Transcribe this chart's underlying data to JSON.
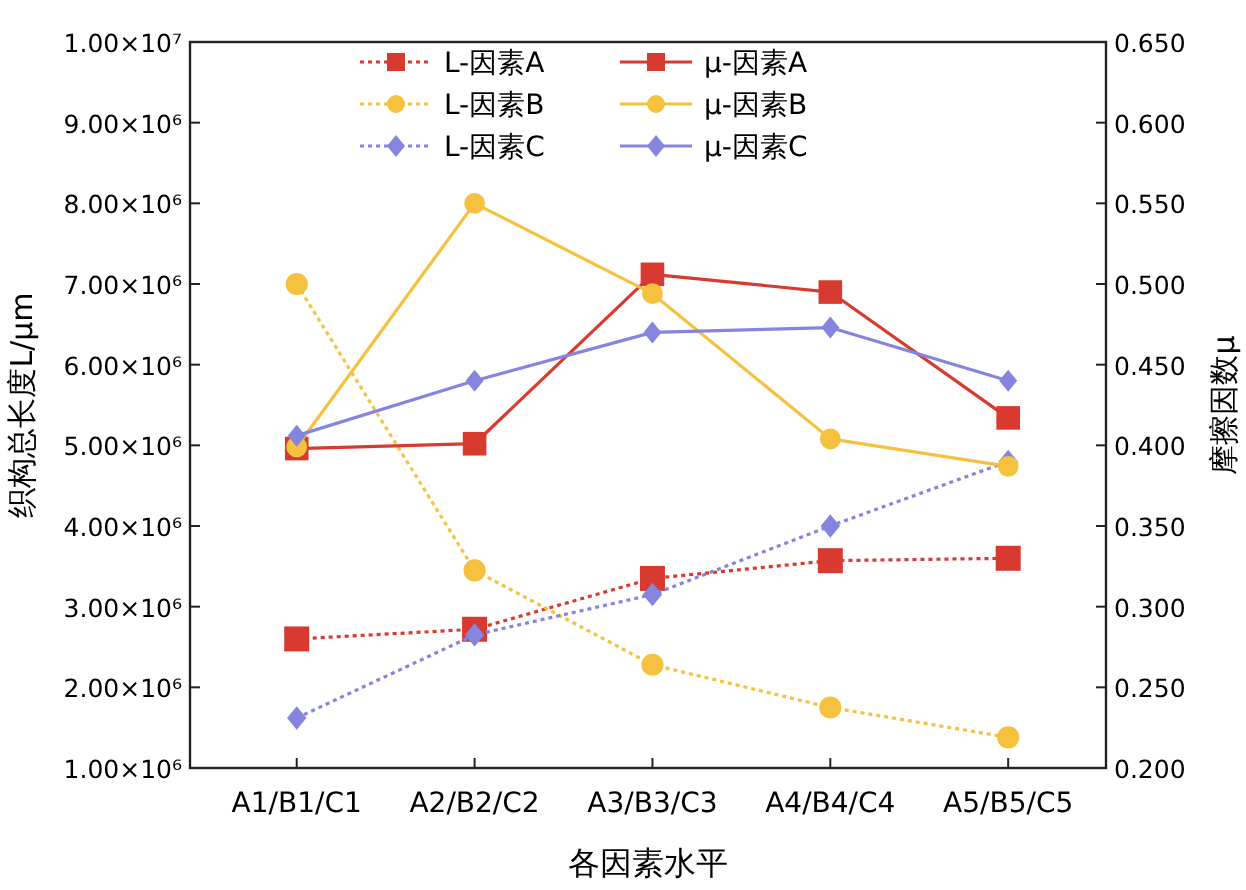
{
  "chart_data": {
    "type": "line",
    "xlabel": "各因素水平",
    "ylabel": "织构总长度L/μm",
    "y2label": "摩擦因数μ",
    "categories": [
      "A1/B1/C1",
      "A2/B2/C2",
      "A3/B3/C3",
      "A4/B4/C4",
      "A5/B5/C5"
    ],
    "ylim": [
      1000000,
      10000000
    ],
    "yticks": [
      {
        "value": 1000000,
        "label": "1.00×10⁶"
      },
      {
        "value": 2000000,
        "label": "2.00×10⁶"
      },
      {
        "value": 3000000,
        "label": "3.00×10⁶"
      },
      {
        "value": 4000000,
        "label": "4.00×10⁶"
      },
      {
        "value": 5000000,
        "label": "5.00×10⁶"
      },
      {
        "value": 6000000,
        "label": "6.00×10⁶"
      },
      {
        "value": 7000000,
        "label": "7.00×10⁶"
      },
      {
        "value": 8000000,
        "label": "8.00×10⁶"
      },
      {
        "value": 9000000,
        "label": "9.00×10⁶"
      },
      {
        "value": 10000000,
        "label": "1.00×10⁷"
      }
    ],
    "y2lim": [
      0.2,
      0.65
    ],
    "y2ticks": [
      {
        "value": 0.2,
        "label": "0.200"
      },
      {
        "value": 0.25,
        "label": "0.250"
      },
      {
        "value": 0.3,
        "label": "0.300"
      },
      {
        "value": 0.35,
        "label": "0.350"
      },
      {
        "value": 0.4,
        "label": "0.400"
      },
      {
        "value": 0.45,
        "label": "0.450"
      },
      {
        "value": 0.5,
        "label": "0.500"
      },
      {
        "value": 0.55,
        "label": "0.550"
      },
      {
        "value": 0.6,
        "label": "0.600"
      },
      {
        "value": 0.65,
        "label": "0.650"
      }
    ],
    "legend": "top",
    "grid": false,
    "series": [
      {
        "name": "L-因素A",
        "color": "#d93a2f",
        "marker": "square",
        "line_style": "dotted",
        "values": [
          2600000,
          2720000,
          3350000,
          3570000,
          3600000
        ]
      },
      {
        "name": "μ-因素A",
        "color": "#d93a2f",
        "marker": "square",
        "line_style": "solid",
        "axis": "y2",
        "values": [
          0.398,
          0.401,
          0.506,
          0.495,
          0.417
        ]
      },
      {
        "name": "L-因素B",
        "color": "#f5c13f",
        "marker": "circle",
        "line_style": "dotted",
        "values": [
          7000000,
          3450000,
          2280000,
          1750000,
          1380000
        ]
      },
      {
        "name": "μ-因素B",
        "color": "#f5c13f",
        "marker": "circle",
        "line_style": "solid",
        "axis": "y2",
        "values": [
          0.399,
          0.55,
          0.494,
          0.404,
          0.387
        ]
      },
      {
        "name": "L-因素C",
        "color": "#8585e0",
        "marker": "diamond",
        "line_style": "dotted",
        "values": [
          1620000,
          2650000,
          3150000,
          4000000,
          4800000
        ]
      },
      {
        "name": "μ-因素C",
        "color": "#8585e0",
        "marker": "diamond",
        "line_style": "solid",
        "axis": "y2",
        "values": [
          0.406,
          0.44,
          0.47,
          0.473,
          0.44
        ]
      }
    ]
  }
}
